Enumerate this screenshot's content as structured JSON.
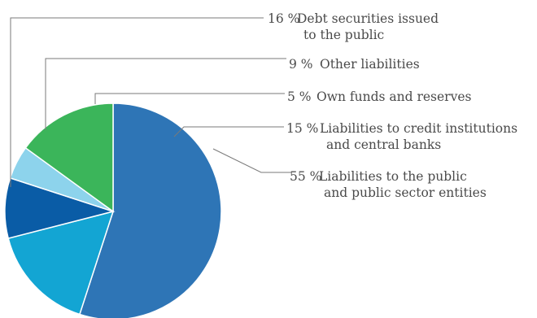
{
  "chart_data": {
    "type": "pie",
    "title": "",
    "slices": [
      {
        "percent_label": "55 %",
        "value": 55,
        "label_lines": [
          "Liabilities to the public",
          "and public sector entities"
        ],
        "color": "#2e75b6"
      },
      {
        "percent_label": "16 %",
        "value": 16,
        "label_lines": [
          "Debt securities issued",
          "to the public"
        ],
        "color": "#13a5d3"
      },
      {
        "percent_label": "9 %",
        "value": 9,
        "label_lines": [
          "Other liabilities"
        ],
        "color": "#0a5ca6"
      },
      {
        "percent_label": "5 %",
        "value": 5,
        "label_lines": [
          "Own funds and reserves"
        ],
        "color": "#8dd3ec"
      },
      {
        "percent_label": "15 %",
        "value": 15,
        "label_lines": [
          "Liabilities to credit institutions",
          "and central banks"
        ],
        "color": "#3bb55a"
      }
    ]
  }
}
